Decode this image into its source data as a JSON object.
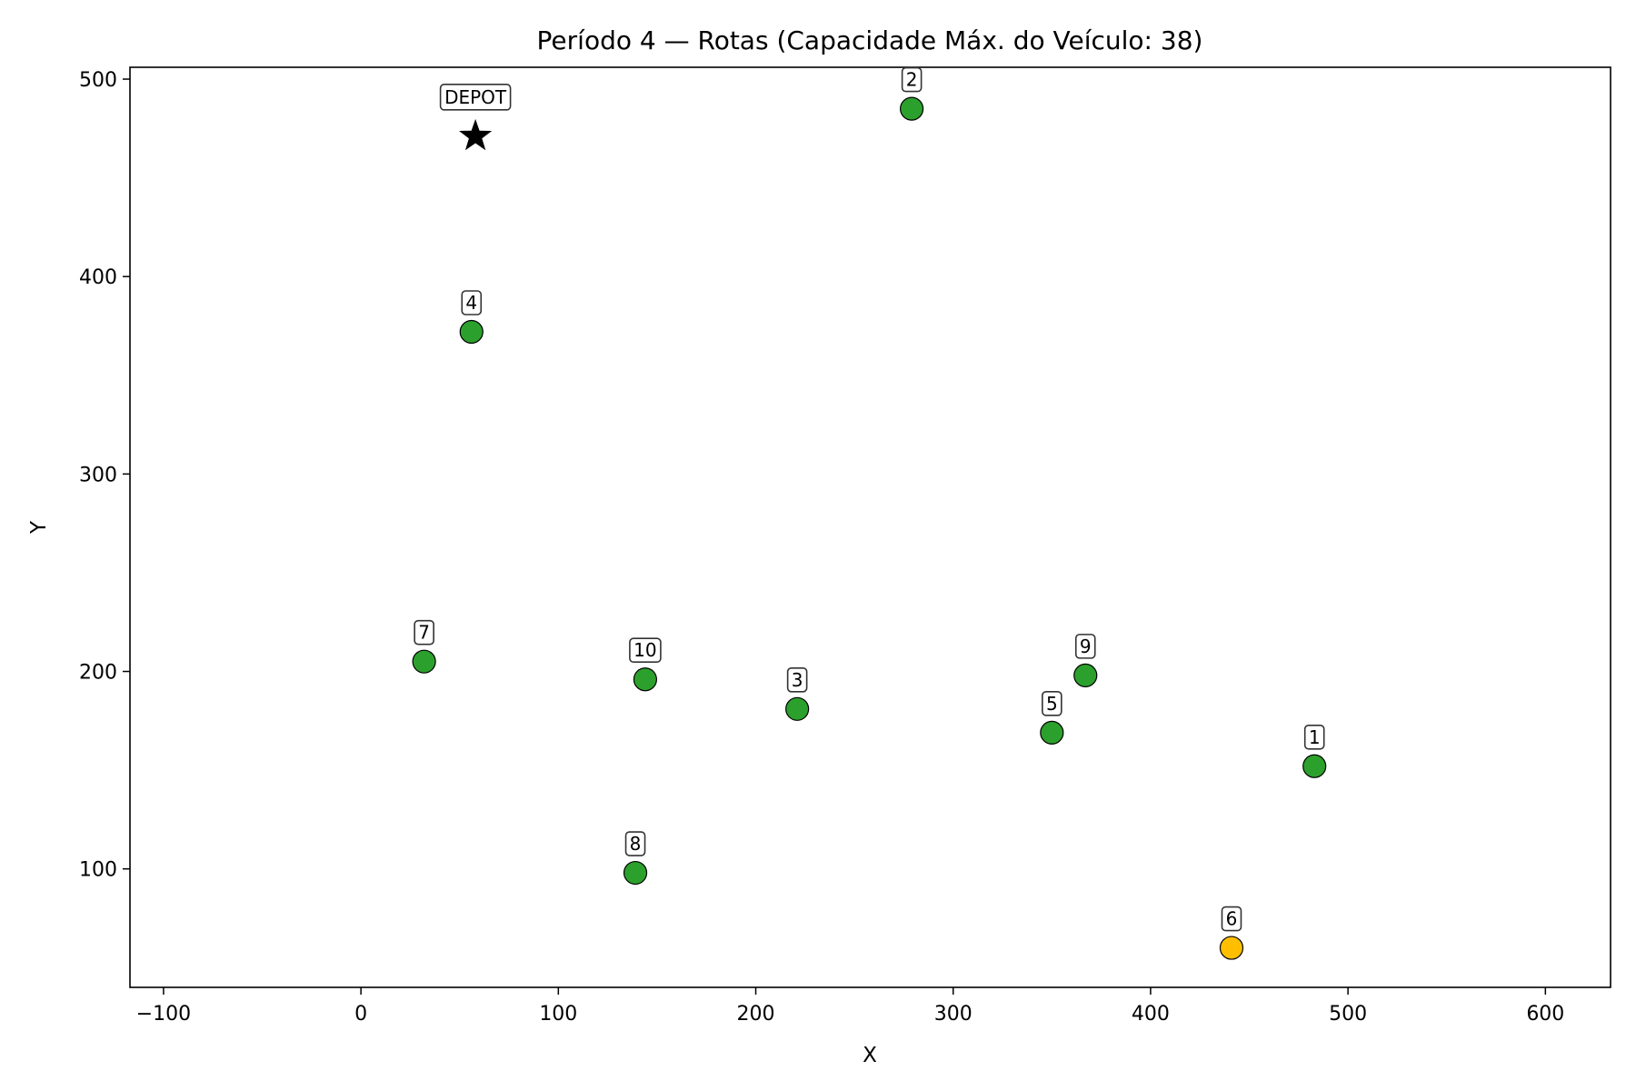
{
  "chart_data": {
    "type": "scatter",
    "title": "Período 4 — Rotas (Capacidade Máx. do Veículo: 38)",
    "xlabel": "X",
    "ylabel": "Y",
    "xlim": [
      -117,
      633
    ],
    "ylim": [
      40,
      506
    ],
    "x_ticks": [
      -100,
      0,
      100,
      200,
      300,
      400,
      500,
      600
    ],
    "y_ticks": [
      100,
      200,
      300,
      400,
      500
    ],
    "grid": false,
    "colors": {
      "customer": "#2ca02c",
      "highlight": "#ffbf00",
      "depot": "#000000",
      "edge": "#000000"
    },
    "depot": {
      "label": "DEPOT",
      "x": 58,
      "y": 472,
      "marker": "star"
    },
    "points": [
      {
        "label": "1",
        "x": 483,
        "y": 152,
        "status": "customer"
      },
      {
        "label": "2",
        "x": 279,
        "y": 485,
        "status": "customer"
      },
      {
        "label": "3",
        "x": 221,
        "y": 181,
        "status": "customer"
      },
      {
        "label": "4",
        "x": 56,
        "y": 372,
        "status": "customer"
      },
      {
        "label": "5",
        "x": 350,
        "y": 169,
        "status": "customer"
      },
      {
        "label": "6",
        "x": 441,
        "y": 60,
        "status": "highlight"
      },
      {
        "label": "7",
        "x": 32,
        "y": 205,
        "status": "customer"
      },
      {
        "label": "8",
        "x": 139,
        "y": 98,
        "status": "customer"
      },
      {
        "label": "9",
        "x": 367,
        "y": 198,
        "status": "customer"
      },
      {
        "label": "10",
        "x": 144,
        "y": 196,
        "status": "customer"
      }
    ]
  }
}
